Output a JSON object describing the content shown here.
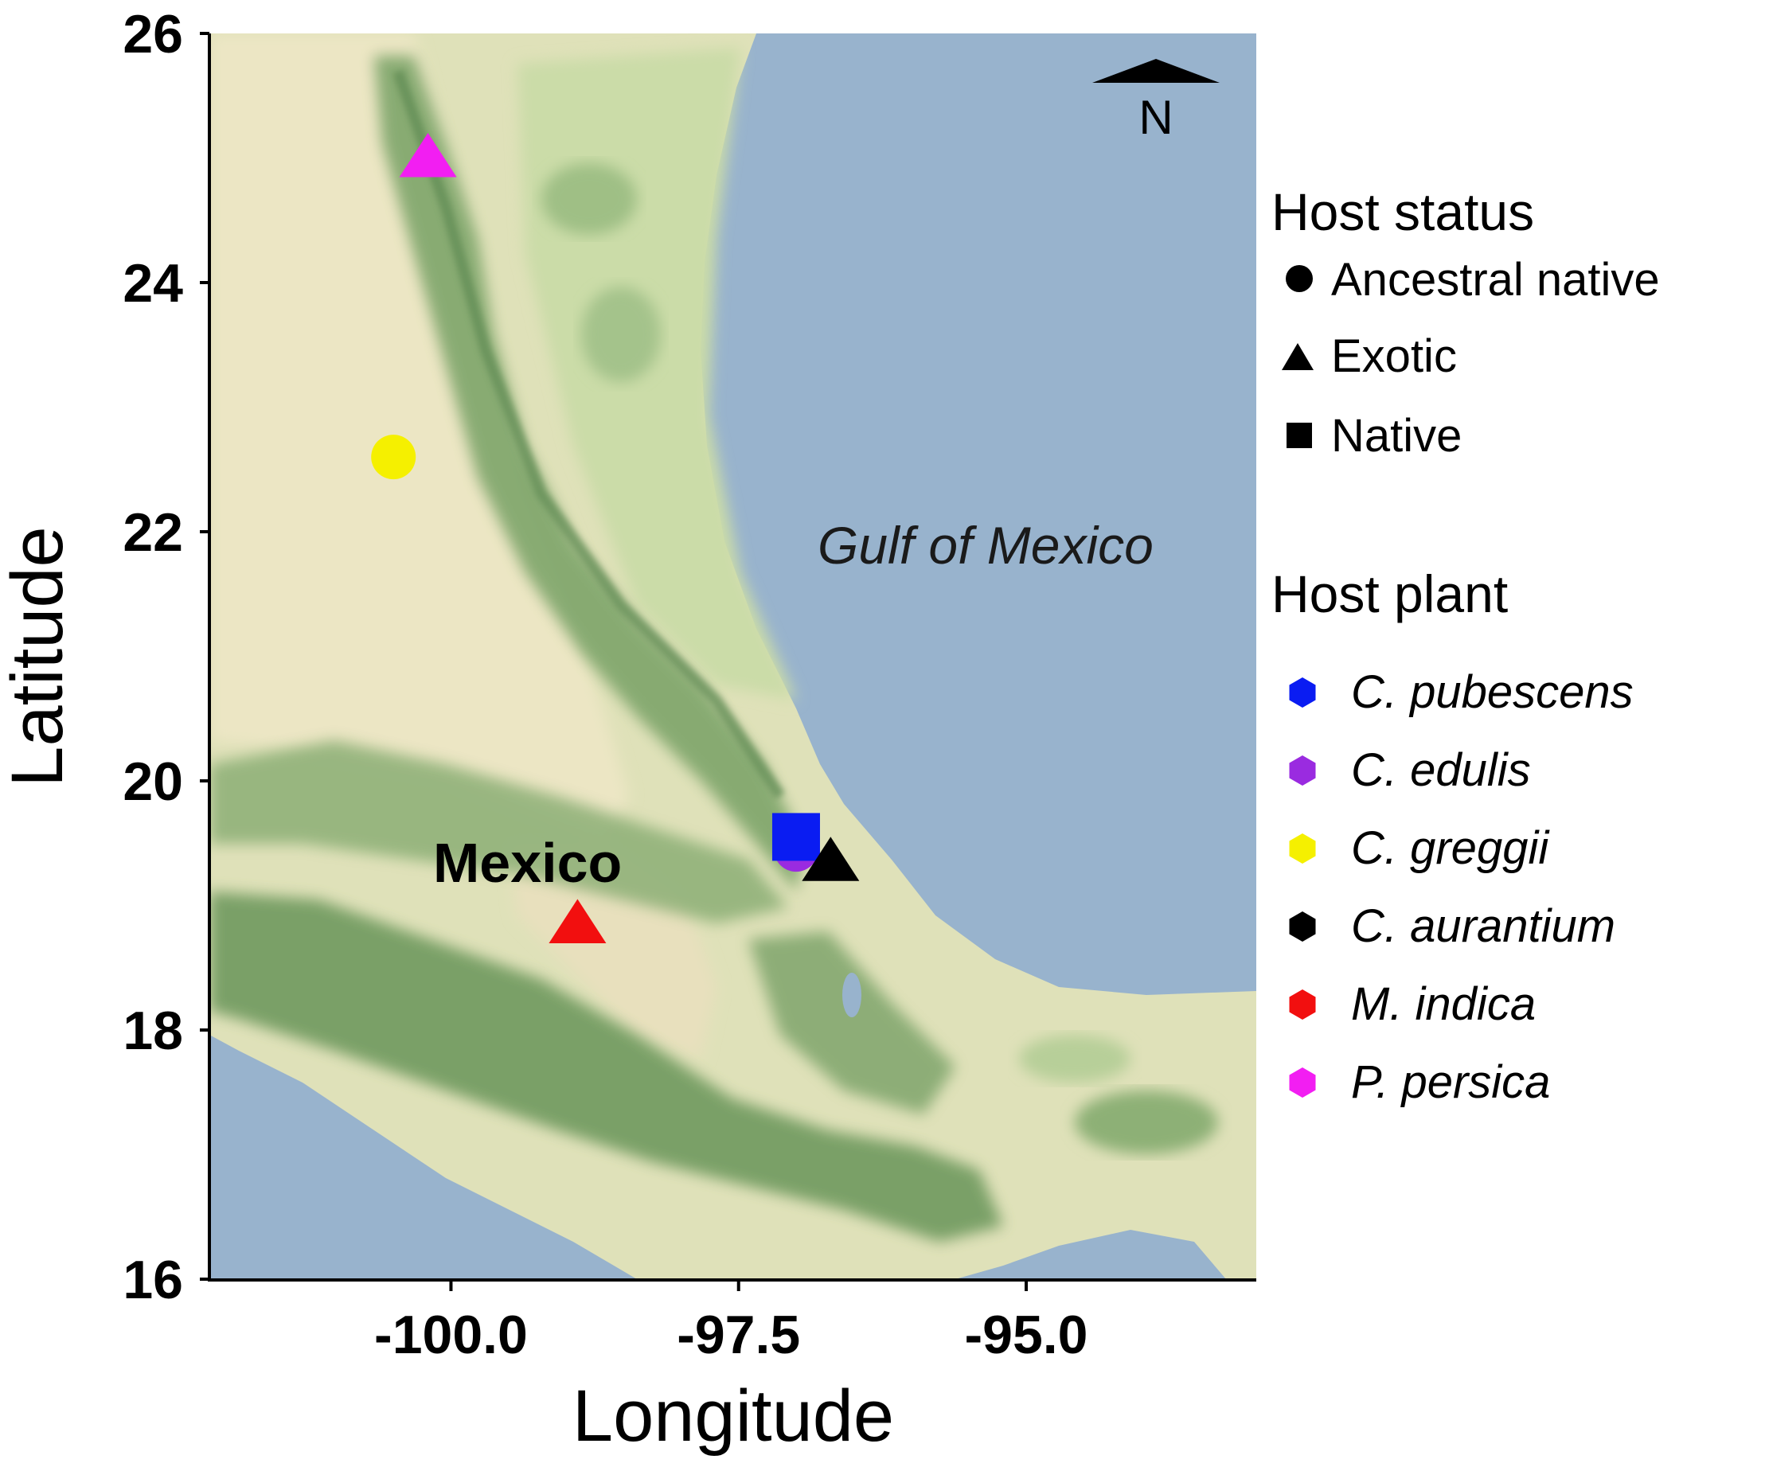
{
  "map": {
    "x_axis": {
      "label": "Longitude",
      "ticks": [
        "-100.0",
        "-97.5",
        "-95.0"
      ],
      "tick_values": [
        -100.0,
        -97.5,
        -95.0
      ],
      "range": [
        -102.1,
        -93.0
      ]
    },
    "y_axis": {
      "label": "Latitude",
      "ticks": [
        "16",
        "18",
        "20",
        "22",
        "24",
        "26"
      ],
      "tick_values": [
        16,
        18,
        20,
        22,
        24,
        26
      ],
      "range": [
        16,
        26
      ]
    },
    "sea_label": "Gulf of Mexico",
    "city_label": "Mexico",
    "north_label": "N",
    "colors": {
      "sea": "#98b3cd",
      "land_dry": "#e6e2c0",
      "land_green": "#c8d9a6",
      "mountains": "#6f9a5e"
    }
  },
  "legend": {
    "status_title": "Host status",
    "status_items": [
      {
        "label": "Ancestral native",
        "shape": "circle"
      },
      {
        "label": "Exotic",
        "shape": "triangle"
      },
      {
        "label": "Native",
        "shape": "square"
      }
    ],
    "plant_title": "Host plant",
    "plant_items": [
      {
        "label": "C. pubescens",
        "color": "#0a1cf2"
      },
      {
        "label": "C. edulis",
        "color": "#9a2be0"
      },
      {
        "label": "C. greggii",
        "color": "#f5f000"
      },
      {
        "label": "C. aurantium",
        "color": "#000000"
      },
      {
        "label": "M. indica",
        "color": "#f20f0f"
      },
      {
        "label": "P. persica",
        "color": "#f21ef2"
      }
    ]
  },
  "points": [
    {
      "plant": "P. persica",
      "status": "Exotic",
      "lon": -100.2,
      "lat": 25.0,
      "color": "#f21ef2"
    },
    {
      "plant": "C. greggii",
      "status": "Ancestral native",
      "lon": -100.5,
      "lat": 22.6,
      "color": "#f5f000"
    },
    {
      "plant": "C. edulis",
      "status": "Ancestral native",
      "lon": -97.0,
      "lat": 19.45,
      "color": "#9a2be0"
    },
    {
      "plant": "C. pubescens",
      "status": "Native",
      "lon": -97.0,
      "lat": 19.55,
      "color": "#0a1cf2"
    },
    {
      "plant": "C. aurantium",
      "status": "Exotic",
      "lon": -96.7,
      "lat": 19.35,
      "color": "#000000"
    },
    {
      "plant": "M. indica",
      "status": "Exotic",
      "lon": -98.9,
      "lat": 18.85,
      "color": "#f20f0f"
    }
  ]
}
